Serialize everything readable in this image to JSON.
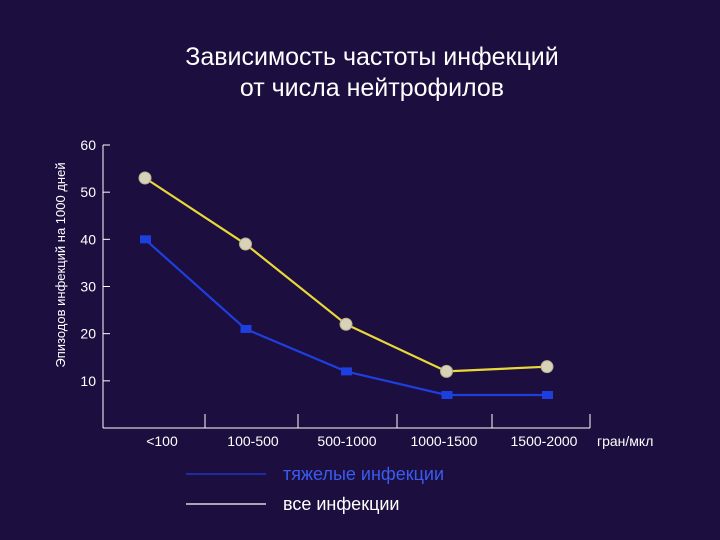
{
  "chart_data": {
    "type": "line",
    "title_lines": [
      "Зависимость частоты инфекций",
      "от числа нейтрофилов"
    ],
    "ylabel": "Эпизодов инфекций на 1000 дней",
    "xlabel": "",
    "x_unit": "гран/мкл",
    "categories": [
      "<100",
      "100-500",
      "500-1000",
      "1000-1500",
      "1500-2000"
    ],
    "y_ticks": [
      10,
      20,
      30,
      40,
      50,
      60
    ],
    "ylim": [
      0,
      60
    ],
    "grid": false,
    "series": [
      {
        "name": "тяжелые инфекции",
        "color": "#1e3fe0",
        "marker": "square",
        "values": [
          40,
          21,
          12,
          7,
          7
        ]
      },
      {
        "name": "все инфекции",
        "color": "#e8d83a",
        "marker": "circle",
        "values": [
          53,
          39,
          22,
          12,
          13
        ]
      }
    ],
    "legend_placement": "bottom"
  }
}
